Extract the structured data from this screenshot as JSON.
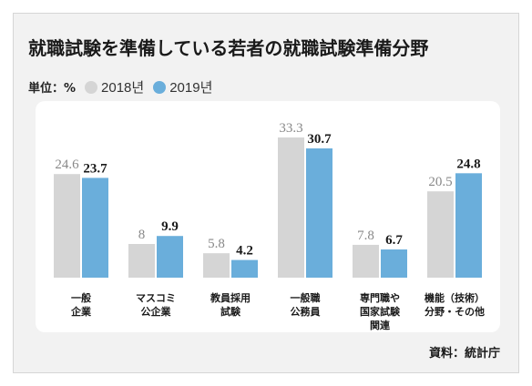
{
  "title": "就職試験を準備している若者の就職試験準備分野",
  "legend": {
    "unit_label": "単位：%",
    "items": [
      "2018년",
      "2019년"
    ]
  },
  "source": "資料：統計庁",
  "colors": {
    "series_2018": "#d5d5d5",
    "series_2019": "#6aaedb",
    "label_2018": "#888888",
    "label_2019": "#1a1a1a"
  },
  "chart_data": {
    "type": "bar",
    "title": "就職試験を準備している若者の就職試験準備分野",
    "unit": "%",
    "categories": [
      [
        "一般",
        "企業"
      ],
      [
        "マスコミ",
        "公企業"
      ],
      [
        "教員採用",
        "試験"
      ],
      [
        "一般職",
        "公務員"
      ],
      [
        "専門職や",
        "国家試験",
        "関連"
      ],
      [
        "機能（技術）",
        "分野・その他"
      ]
    ],
    "series": [
      {
        "name": "2018년",
        "values": [
          24.6,
          8,
          5.8,
          33.3,
          7.8,
          20.5
        ]
      },
      {
        "name": "2019년",
        "values": [
          23.7,
          9.9,
          4.2,
          30.7,
          6.7,
          24.8
        ]
      }
    ],
    "ylim": [
      0,
      33.3
    ],
    "legend_position": "top-left"
  }
}
